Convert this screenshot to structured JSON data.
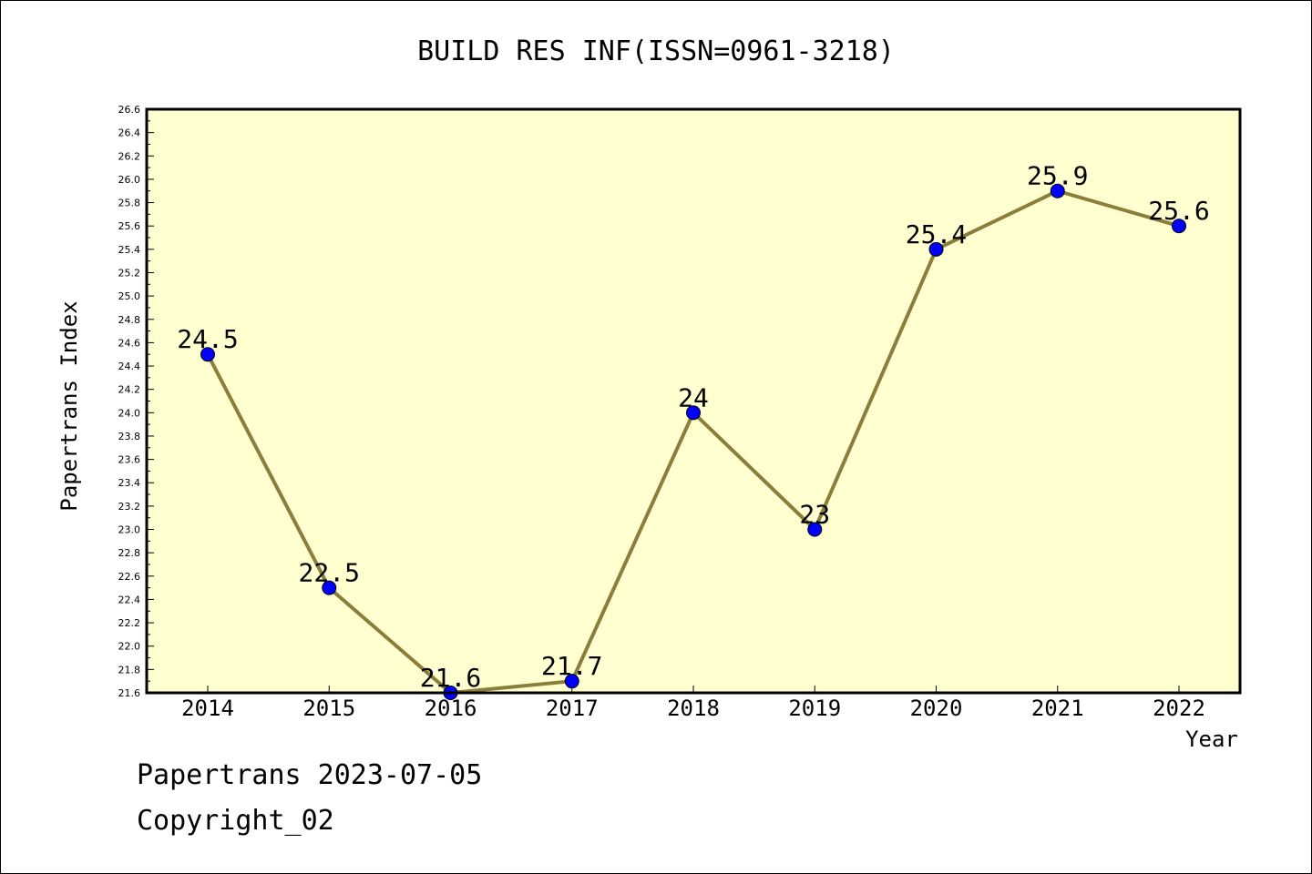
{
  "chart_data": {
    "type": "line",
    "title": "BUILD RES INF(ISSN=0961-3218)",
    "xlabel": "Year",
    "ylabel": "Papertrans Index",
    "categories": [
      "2014",
      "2015",
      "2016",
      "2017",
      "2018",
      "2019",
      "2020",
      "2021",
      "2022"
    ],
    "series": [
      {
        "values": [
          24.5,
          22.5,
          21.6,
          21.7,
          24,
          23,
          25.4,
          25.9,
          25.6
        ],
        "data_labels": [
          "24.5",
          "22.5",
          "21.6",
          "21.7",
          "24",
          "23",
          "25.4",
          "25.9",
          "25.6"
        ]
      }
    ],
    "ylim": [
      21.6,
      26.6
    ],
    "yticks": [
      "21.6",
      "21.8",
      "22.0",
      "22.2",
      "22.4",
      "22.6",
      "22.8",
      "23.0",
      "23.2",
      "23.4",
      "23.6",
      "23.8",
      "24.0",
      "24.2",
      "24.4",
      "24.6",
      "24.8",
      "25.0",
      "25.2",
      "25.4",
      "25.6",
      "25.8",
      "26.0",
      "26.2",
      "26.4",
      "26.6"
    ],
    "grid": false,
    "colors": {
      "line": "#8B7D3A",
      "marker": "#0000FF",
      "plot_background": "#FFFFD0"
    }
  },
  "footer": {
    "line1": "Papertrans 2023-07-05",
    "line2": "Copyright_02"
  }
}
